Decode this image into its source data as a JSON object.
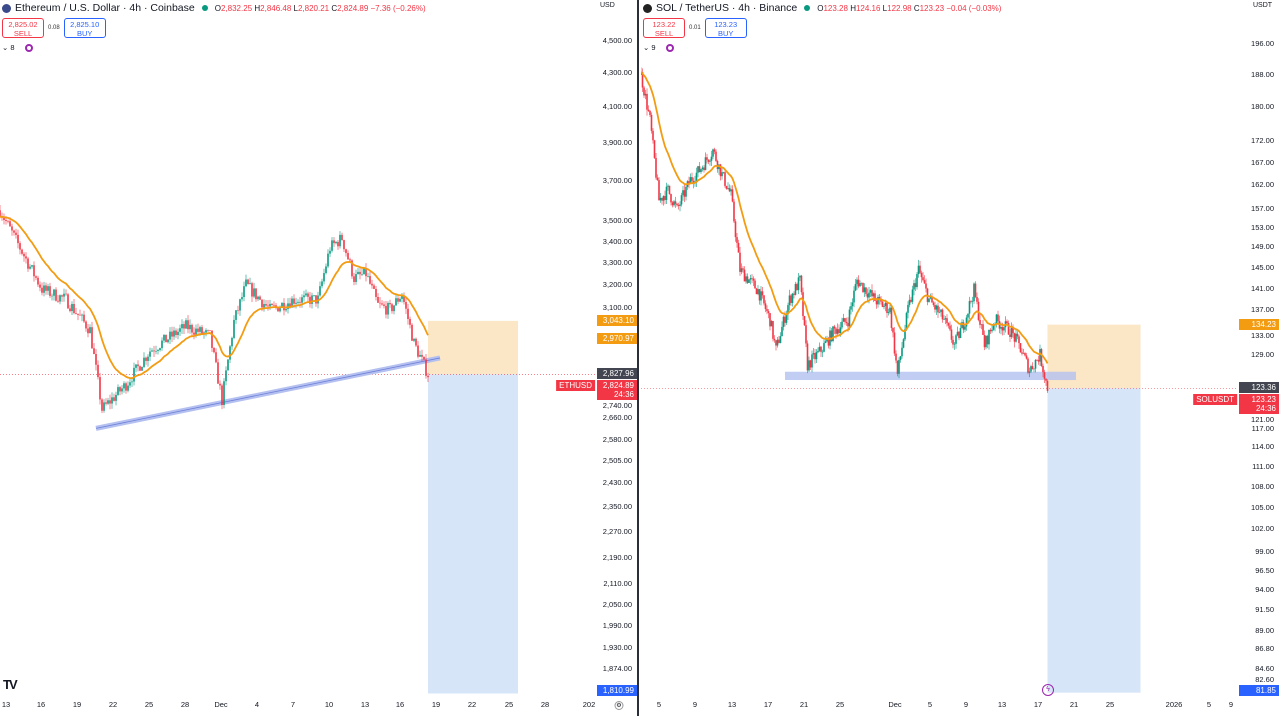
{
  "colors": {
    "up": "#089981",
    "down": "#f23645",
    "ema": "#f39c12",
    "stop": "#fbe6c5",
    "target": "#d6e6f8",
    "trend": "#b3c0f0",
    "last": "#f23645",
    "prev": "#434651",
    "ema_badge": "#f39c12",
    "target_badge": "#2962ff"
  },
  "left": {
    "title": "Ethereum / U.S. Dollar · 4h · Coinbase",
    "ohlc": {
      "o": "2,832.25",
      "h": "2,846.48",
      "l": "2,820.21",
      "c": "2,824.89",
      "chg": "−7.36 (−0.26%)"
    },
    "sell": {
      "price": "2,825.02",
      "label": "SELL"
    },
    "spread": "0.08",
    "buy": {
      "price": "2,825.10",
      "label": "BUY"
    },
    "indicators_count": "8",
    "currency": "USD",
    "y_ticks": [
      "4,500.00",
      "4,300.00",
      "4,100.00",
      "3,900.00",
      "3,700.00",
      "3,500.00",
      "3,400.00",
      "3,300.00",
      "3,200.00",
      "3,100.00",
      "2,740.00",
      "2,660.00",
      "2,580.00",
      "2,505.00",
      "2,430.00",
      "2,350.00",
      "2,270.00",
      "2,190.00",
      "2,110.00",
      "2,050.00",
      "1,990.00",
      "1,930.00",
      "1,874.00"
    ],
    "x_ticks": [
      "13",
      "16",
      "19",
      "22",
      "25",
      "28",
      "Dec",
      "4",
      "7",
      "10",
      "13",
      "16",
      "19",
      "22",
      "25",
      "28",
      "202"
    ],
    "badges": {
      "stop": "3,043.10",
      "ema": "2,970.97",
      "prev": "2,827.96",
      "symbol": "ETHUSD",
      "last": "2,824.89",
      "countdown": "24:36",
      "target": "1,810.99"
    },
    "path": [
      [
        "2025-11-12T12",
        3550
      ],
      [
        "2025-11-16",
        3180
      ],
      [
        "2025-11-18",
        3135
      ],
      [
        "2025-11-20",
        3005
      ],
      [
        "2025-11-21",
        2690
      ],
      [
        "2025-11-23",
        2785
      ],
      [
        "2025-11-25",
        2920
      ],
      [
        "2025-11-28",
        3020
      ],
      [
        "2025-11-30",
        2980
      ],
      [
        "2025-12-01",
        2725
      ],
      [
        "2025-12-02",
        3040
      ],
      [
        "2025-12-03",
        3200
      ],
      [
        "2025-12-05",
        3090
      ],
      [
        "2025-12-07",
        3135
      ],
      [
        "2025-12-09",
        3135
      ],
      [
        "2025-12-10",
        3370
      ],
      [
        "2025-12-11",
        3415
      ],
      [
        "2025-12-12",
        3230
      ],
      [
        "2025-12-13",
        3250
      ],
      [
        "2025-12-14",
        3110
      ],
      [
        "2025-12-15",
        3090
      ],
      [
        "2025-12-16",
        3160
      ],
      [
        "2025-12-17",
        2950
      ],
      [
        "2025-12-18T04",
        2824.89
      ]
    ],
    "trendline": [
      [
        "2025-11-20T12",
        2620
      ],
      [
        "2025-12-19T04",
        2890
      ]
    ],
    "position": {
      "start": "2025-12-18T04",
      "end": "2025-12-25T16",
      "entry": 2824.89,
      "stop": 3043.1,
      "target": 1810.99
    }
  },
  "right": {
    "title": "SOL / TetherUS · 4h · Binance",
    "ohlc": {
      "o": "123.28",
      "h": "124.16",
      "l": "122.98",
      "c": "123.23",
      "chg": "−0.04 (−0.03%)"
    },
    "sell": {
      "price": "123.22",
      "label": "SELL"
    },
    "spread": "0.01",
    "buy": {
      "price": "123.23",
      "label": "BUY"
    },
    "indicators_count": "9",
    "currency": "USDT",
    "y_ticks": [
      "196.00",
      "188.00",
      "180.00",
      "172.00",
      "167.00",
      "162.00",
      "157.00",
      "153.00",
      "149.00",
      "145.00",
      "141.00",
      "137.00",
      "133.00",
      "129.00",
      "121.00",
      "117.00",
      "114.00",
      "111.00",
      "108.00",
      "105.00",
      "102.00",
      "99.00",
      "96.50",
      "94.00",
      "91.50",
      "89.00",
      "86.80",
      "84.60",
      "82.60"
    ],
    "x_ticks": [
      "5",
      "9",
      "13",
      "17",
      "21",
      "25",
      "Dec",
      "5",
      "9",
      "13",
      "17",
      "21",
      "25",
      "2026",
      "5",
      "9"
    ],
    "badges": {
      "stop": "134.23",
      "prev": "123.36",
      "symbol": "SOLUSDT",
      "last": "123.23",
      "countdown": "24:36",
      "target": "81.85"
    },
    "path": [
      [
        "2025-11-03",
        187.8
      ],
      [
        "2025-11-04",
        176.7
      ],
      [
        "2025-11-05",
        158.7
      ],
      [
        "2025-11-06",
        160.8
      ],
      [
        "2025-11-07",
        156.6
      ],
      [
        "2025-11-08T12",
        163.1
      ],
      [
        "2025-11-09T12",
        165.2
      ],
      [
        "2025-11-11",
        169.7
      ],
      [
        "2025-11-12",
        164.2
      ],
      [
        "2025-11-13",
        159.8
      ],
      [
        "2025-11-14",
        144.5
      ],
      [
        "2025-11-16",
        140.6
      ],
      [
        "2025-11-17T08",
        135.1
      ],
      [
        "2025-11-18",
        129.7
      ],
      [
        "2025-11-19T12",
        138.8
      ],
      [
        "2025-11-20T16",
        142.5
      ],
      [
        "2025-11-21T12",
        127.1
      ],
      [
        "2025-11-23",
        129.7
      ],
      [
        "2025-11-24T12",
        133.2
      ],
      [
        "2025-11-26",
        135.1
      ],
      [
        "2025-11-27",
        142.5
      ],
      [
        "2025-11-29",
        138.8
      ],
      [
        "2025-11-30T16",
        136.9
      ],
      [
        "2025-12-01T12",
        125.5
      ],
      [
        "2025-12-02T16",
        136.9
      ],
      [
        "2025-12-03T20",
        144.5
      ],
      [
        "2025-12-05",
        138.8
      ],
      [
        "2025-12-06T16",
        135.1
      ],
      [
        "2025-12-07T20",
        130.6
      ],
      [
        "2025-12-09",
        135.1
      ],
      [
        "2025-12-10",
        140.6
      ],
      [
        "2025-12-11T04",
        130.6
      ],
      [
        "2025-12-12T08",
        135.1
      ],
      [
        "2025-12-14",
        133.2
      ],
      [
        "2025-12-15",
        130.6
      ],
      [
        "2025-12-16T04",
        126.3
      ],
      [
        "2025-12-17T08",
        128.9
      ],
      [
        "2025-12-18T04",
        123.23
      ]
    ],
    "zone": {
      "start": "2025-11-19",
      "end": "2025-12-21T08",
      "low": 124.6,
      "high": 126.0
    },
    "position": {
      "start": "2025-12-18T04",
      "end": "2025-12-28T12",
      "entry": 123.23,
      "stop": 134.23,
      "target": 81.85
    }
  }
}
